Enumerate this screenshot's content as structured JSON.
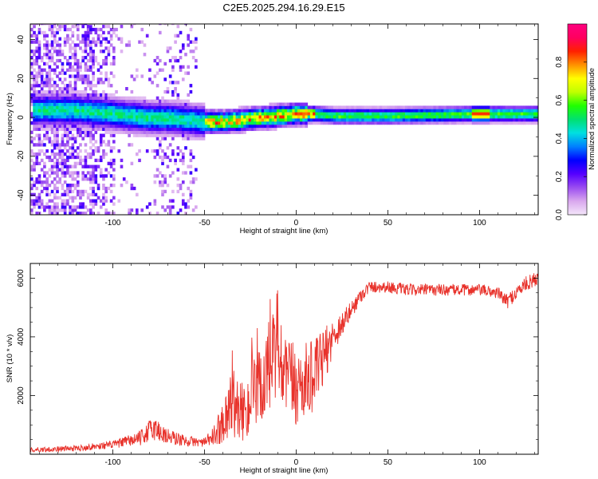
{
  "title": "C2E5.2025.294.16.29.E15",
  "chart_data": [
    {
      "type": "heatmap",
      "name": "spectrogram",
      "xlabel": "Height of straight line (km)",
      "ylabel": "Frequency (Hz)",
      "xlim": [
        -145,
        132
      ],
      "ylim": [
        -50,
        48
      ],
      "xticks": [
        -100,
        -50,
        0,
        50,
        100
      ],
      "xtick_labels": [
        "-100",
        "-50",
        "0",
        "50",
        "100"
      ],
      "yticks": [
        -40,
        -20,
        0,
        20,
        40
      ],
      "ytick_labels": [
        "-40",
        "-20",
        "0",
        "20",
        "40"
      ],
      "ridge": {
        "x": [
          -140,
          -120,
          -100,
          -80,
          -70,
          -60,
          -50,
          -40,
          -30,
          -20,
          -10,
          0,
          10,
          20,
          50,
          100,
          132
        ],
        "freq": [
          3,
          3,
          1,
          -1,
          -1,
          -2,
          -3,
          -3,
          -2,
          -1,
          0,
          1,
          1,
          0,
          0,
          1,
          1
        ]
      },
      "colorbar": {
        "label": "Normalized spectral amplitude",
        "range": [
          0.0,
          1.0
        ],
        "ticks": [
          0.0,
          0.2,
          0.4,
          0.6,
          0.8
        ],
        "tick_labels": [
          "0.0",
          "0.2",
          "0.4",
          "0.6",
          "0.8"
        ],
        "colors": [
          "#f4e6fa",
          "#d9a8ee",
          "#9a4cf0",
          "#5500ff",
          "#0000ff",
          "#0080ff",
          "#00e0e0",
          "#00e070",
          "#20ff00",
          "#c0ff00",
          "#ffff00",
          "#ff9000",
          "#ff2000",
          "#ff0060",
          "#ff007f"
        ]
      }
    },
    {
      "type": "line",
      "name": "snr",
      "xlabel": "Height of straight line (km)",
      "ylabel": "SNR (10 * v/v)",
      "xlim": [
        -145,
        132
      ],
      "ylim": [
        0,
        6500
      ],
      "xticks": [
        -100,
        -50,
        0,
        50,
        100
      ],
      "xtick_labels": [
        "-100",
        "-50",
        "0",
        "50",
        "100"
      ],
      "yticks": [
        2000,
        4000,
        6000
      ],
      "ytick_labels": [
        "2000",
        "4000",
        "6000"
      ],
      "color": "#e8322b",
      "envelope": {
        "x": [
          -145,
          -120,
          -100,
          -85,
          -78,
          -70,
          -60,
          -50,
          -45,
          -40,
          -35,
          -30,
          -20,
          -15,
          -10,
          -5,
          0,
          10,
          15,
          20,
          30,
          35,
          40,
          50,
          60,
          80,
          100,
          110,
          115,
          120,
          125,
          132
        ],
        "mean": [
          150,
          200,
          330,
          550,
          900,
          600,
          450,
          400,
          600,
          1100,
          1800,
          1400,
          2200,
          2900,
          3200,
          2600,
          2300,
          2700,
          3300,
          4000,
          4900,
          5400,
          5700,
          5700,
          5600,
          5600,
          5600,
          5500,
          5200,
          5500,
          5800,
          6000
        ],
        "spread": [
          80,
          100,
          130,
          250,
          450,
          300,
          180,
          150,
          350,
          700,
          1200,
          1000,
          1400,
          1800,
          1800,
          1500,
          1400,
          1200,
          1000,
          600,
          300,
          250,
          200,
          200,
          200,
          200,
          200,
          200,
          250,
          250,
          250,
          250
        ]
      }
    }
  ]
}
